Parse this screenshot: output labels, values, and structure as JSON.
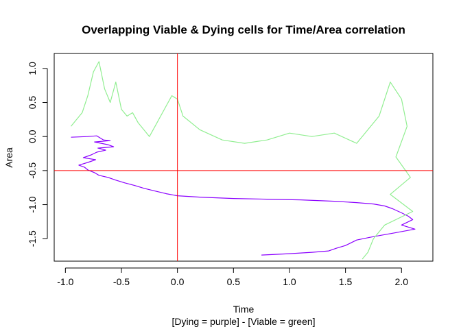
{
  "chart_data": {
    "type": "line",
    "title": "Overlapping Viable & Dying cells for Time/Area correlation",
    "xlabel": "Time",
    "subtitle": "[Dying = purple] - [Viable = green]",
    "ylabel": "Area",
    "xlim": [
      -1.1,
      2.28
    ],
    "ylim": [
      -1.83,
      1.22
    ],
    "x_ticks": [
      -1.0,
      -0.5,
      0.0,
      0.5,
      1.0,
      1.5,
      2.0
    ],
    "x_tick_labels": [
      "-1.0",
      "-0.5",
      "0.0",
      "0.5",
      "1.0",
      "1.5",
      "2.0"
    ],
    "y_ticks": [
      -1.5,
      -1.0,
      -0.5,
      0.0,
      0.5,
      1.0
    ],
    "y_tick_labels": [
      "-1.5",
      "-1.0",
      "-0.5",
      "0.0",
      "0.5",
      "1.0"
    ],
    "reference_lines": {
      "vertical_x": 0.0,
      "horizontal_y": -0.5,
      "color": "#ff0000"
    },
    "series": [
      {
        "name": "Dying",
        "color": "#8b00ff",
        "points": [
          [
            -0.95,
            -0.01
          ],
          [
            -0.8,
            0.0
          ],
          [
            -0.72,
            0.01
          ],
          [
            -0.66,
            -0.05
          ],
          [
            -0.6,
            -0.06
          ],
          [
            -0.74,
            -0.08
          ],
          [
            -0.62,
            -0.12
          ],
          [
            -0.57,
            -0.15
          ],
          [
            -0.71,
            -0.17
          ],
          [
            -0.64,
            -0.2
          ],
          [
            -0.72,
            -0.23
          ],
          [
            -0.77,
            -0.27
          ],
          [
            -0.84,
            -0.31
          ],
          [
            -0.73,
            -0.34
          ],
          [
            -0.8,
            -0.38
          ],
          [
            -0.88,
            -0.42
          ],
          [
            -0.83,
            -0.45
          ],
          [
            -0.8,
            -0.49
          ],
          [
            -0.74,
            -0.53
          ],
          [
            -0.7,
            -0.57
          ],
          [
            -0.62,
            -0.6
          ],
          [
            -0.55,
            -0.64
          ],
          [
            -0.47,
            -0.68
          ],
          [
            -0.38,
            -0.72
          ],
          [
            -0.3,
            -0.76
          ],
          [
            -0.2,
            -0.8
          ],
          [
            -0.1,
            -0.84
          ],
          [
            0.0,
            -0.87
          ],
          [
            0.2,
            -0.89
          ],
          [
            0.5,
            -0.91
          ],
          [
            0.8,
            -0.92
          ],
          [
            1.1,
            -0.93
          ],
          [
            1.4,
            -0.95
          ],
          [
            1.6,
            -0.97
          ],
          [
            1.75,
            -0.99
          ],
          [
            1.85,
            -1.02
          ],
          [
            1.92,
            -1.06
          ],
          [
            2.0,
            -1.12
          ],
          [
            2.06,
            -1.17
          ],
          [
            2.1,
            -1.22
          ],
          [
            2.05,
            -1.26
          ],
          [
            2.0,
            -1.3
          ],
          [
            2.12,
            -1.36
          ],
          [
            2.02,
            -1.39
          ],
          [
            1.92,
            -1.42
          ],
          [
            1.82,
            -1.45
          ],
          [
            1.72,
            -1.48
          ],
          [
            1.6,
            -1.52
          ],
          [
            1.55,
            -1.56
          ],
          [
            1.5,
            -1.6
          ],
          [
            1.42,
            -1.64
          ],
          [
            1.35,
            -1.68
          ],
          [
            1.2,
            -1.7
          ],
          [
            1.0,
            -1.72
          ],
          [
            0.75,
            -1.74
          ]
        ]
      },
      {
        "name": "Viable",
        "color": "#90ee90",
        "points": [
          [
            -0.95,
            0.15
          ],
          [
            -0.85,
            0.35
          ],
          [
            -0.8,
            0.6
          ],
          [
            -0.75,
            0.95
          ],
          [
            -0.7,
            1.1
          ],
          [
            -0.65,
            0.7
          ],
          [
            -0.6,
            0.5
          ],
          [
            -0.55,
            0.8
          ],
          [
            -0.5,
            0.4
          ],
          [
            -0.45,
            0.3
          ],
          [
            -0.4,
            0.35
          ],
          [
            -0.35,
            0.2
          ],
          [
            -0.3,
            0.1
          ],
          [
            -0.25,
            0.0
          ],
          [
            -0.2,
            0.15
          ],
          [
            -0.1,
            0.45
          ],
          [
            -0.05,
            0.6
          ],
          [
            0.0,
            0.55
          ],
          [
            0.05,
            0.3
          ],
          [
            0.2,
            0.1
          ],
          [
            0.4,
            -0.05
          ],
          [
            0.6,
            -0.1
          ],
          [
            0.8,
            -0.05
          ],
          [
            1.0,
            0.05
          ],
          [
            1.2,
            0.0
          ],
          [
            1.4,
            0.05
          ],
          [
            1.6,
            -0.1
          ],
          [
            1.8,
            0.3
          ],
          [
            1.9,
            0.8
          ],
          [
            2.0,
            0.55
          ],
          [
            2.05,
            0.15
          ],
          [
            1.95,
            -0.3
          ],
          [
            2.08,
            -0.6
          ],
          [
            1.9,
            -0.85
          ],
          [
            2.1,
            -1.1
          ],
          [
            1.85,
            -1.3
          ],
          [
            1.75,
            -1.5
          ],
          [
            1.7,
            -1.7
          ],
          [
            1.65,
            -1.8
          ]
        ]
      }
    ]
  }
}
